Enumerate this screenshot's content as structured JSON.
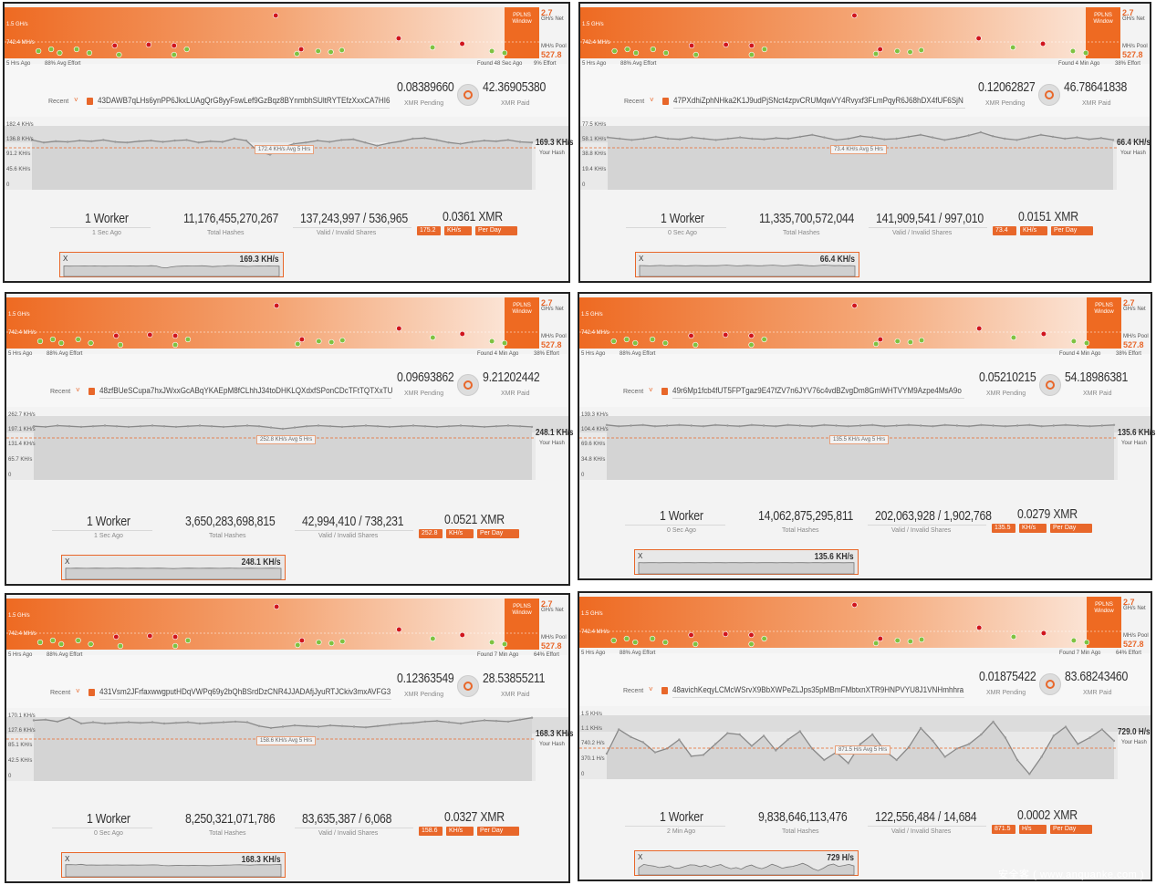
{
  "common": {
    "pool_scale_label": "1.5 GH/s",
    "pool_mid_label": "742.4 MH/s",
    "pplns": "PPLNS",
    "window": "Window",
    "net_value": "2.7",
    "net_label": "GH/s Net",
    "pool_value": "527.8",
    "pool_label": "MH/s Pool",
    "hrs_ago": "5 Hrs Ago",
    "avg_effort": "88% Avg Effort",
    "recent": "Recent",
    "xmr_pending": "XMR Pending",
    "xmr_paid": "XMR Paid",
    "your_hash": "Your Hash",
    "total_hashes": "Total Hashes",
    "valid_invalid": "Valid / Invalid Shares",
    "per_day": "Per Day",
    "close": "X",
    "watermark": "安全客 ( www.anquanke.com )",
    "colors": {
      "accent": "#e8672a",
      "green_dot": "#7ec241",
      "red_dot": "#d0151d"
    }
  },
  "panels": [
    {
      "found": "Found 48 Sec Ago",
      "effort": "9% Effort",
      "address": "43DAWB7qLHs6ynPP6JkxLUAgQrG8yyFswLef9GzBqz8BYnmbhSUltRYTEfzXxxCA7HI6",
      "pending": "0.08389660",
      "paid": "42.36905380",
      "hash_axis": [
        "182.4 KH/s",
        "136.8 KH/s",
        "91.2 KH/s",
        "45.6 KH/s",
        "0"
      ],
      "avg_label": "172.4 KH/s Avg 5 Hrs",
      "current_hash": "169.3 KH/s",
      "workers": "1 Worker",
      "last_share": "1 Sec Ago",
      "total_hashes": "11,176,455,270,267",
      "shares": "137,243,997 / 536,965",
      "xmr_day": "0.0361 XMR",
      "calc_hash": "175.2",
      "unit": "KH/s",
      "mini_value": "169.3 KH/s",
      "hash_series": [
        0.78,
        0.74,
        0.76,
        0.75,
        0.77,
        0.76,
        0.78,
        0.75,
        0.74,
        0.76,
        0.77,
        0.75,
        0.77,
        0.78,
        0.74,
        0.76,
        0.75,
        0.8,
        0.77,
        0.6,
        0.55,
        0.66,
        0.72,
        0.74,
        0.77,
        0.75,
        0.78,
        0.79,
        0.74,
        0.69,
        0.73,
        0.76,
        0.8,
        0.81,
        0.78,
        0.74,
        0.72,
        0.75,
        0.77,
        0.76,
        0.78,
        0.75,
        0.74
      ]
    },
    {
      "found": "Found 4 Min Ago",
      "effort": "38% Effort",
      "address": "47PXdhiZphNHka2K1J9udPjSNct4zpvCRUMqwVY4Rvyxf3FLmPqyR6J68hDX4fUF6SjN",
      "pending": "0.12062827",
      "paid": "46.78641838",
      "hash_axis": [
        "77.5 KH/s",
        "58.1 KH/s",
        "38.8 KH/s",
        "19.4 KH/s",
        "0"
      ],
      "avg_label": "73.4 KH/s Avg 5 Hrs",
      "current_hash": "66.4 KH/s",
      "workers": "1 Worker",
      "last_share": "0 Sec Ago",
      "total_hashes": "11,335,700,572,044",
      "shares": "141,909,541 / 997,010",
      "xmr_day": "0.0151 XMR",
      "calc_hash": "73.4",
      "unit": "KH/s",
      "mini_value": "66.4 KH/s",
      "hash_series": [
        0.82,
        0.8,
        0.78,
        0.8,
        0.83,
        0.8,
        0.79,
        0.82,
        0.8,
        0.78,
        0.8,
        0.82,
        0.8,
        0.79,
        0.81,
        0.8,
        0.83,
        0.86,
        0.82,
        0.78,
        0.8,
        0.84,
        0.82,
        0.79,
        0.8,
        0.83,
        0.86,
        0.82,
        0.78,
        0.81,
        0.85,
        0.9,
        0.84,
        0.8,
        0.78,
        0.82,
        0.86,
        0.83,
        0.8,
        0.82,
        0.79,
        0.81,
        0.78
      ]
    },
    {
      "found": "Found 4 Min Ago",
      "effort": "38% Effort",
      "address": "48zfBUeSCupa7hxJWxxGcABqYKAEpM8fCLhhJ34toDHKLQXdxfSPonCDcTFtTQTXxTU",
      "pending": "0.09693862",
      "paid": "9.21202442",
      "hash_axis": [
        "262.7 KH/s",
        "197.1 KH/s",
        "131.4 KH/s",
        "65.7 KH/s",
        "0"
      ],
      "avg_label": "252.8 KH/s Avg 5 Hrs",
      "current_hash": "248.1 KH/s",
      "workers": "1 Worker",
      "last_share": "1 Sec Ago",
      "total_hashes": "3,650,283,698,815",
      "shares": "42,994,410 / 738,231",
      "xmr_day": "0.0521 XMR",
      "calc_hash": "252.8",
      "unit": "KH/s",
      "mini_value": "248.1 KH/s",
      "hash_series": [
        0.84,
        0.83,
        0.85,
        0.84,
        0.83,
        0.84,
        0.85,
        0.84,
        0.83,
        0.84,
        0.85,
        0.84,
        0.83,
        0.84,
        0.85,
        0.84,
        0.83,
        0.84,
        0.85,
        0.84,
        0.82,
        0.8,
        0.82,
        0.84,
        0.85,
        0.84,
        0.83,
        0.84,
        0.85,
        0.84,
        0.83,
        0.84,
        0.85,
        0.84,
        0.83,
        0.84,
        0.85,
        0.84,
        0.83,
        0.84,
        0.85,
        0.84,
        0.83
      ]
    },
    {
      "found": "Found 4 Min Ago",
      "effort": "38% Effort",
      "address": "49r6Mp1fcb4fUT5FPTgaz9E47fZV7n6JYV76c4vdBZvgDm8GmWHTVYM9Azpe4MsA9o",
      "pending": "0.05210215",
      "paid": "54.18986381",
      "hash_axis": [
        "139.3 KH/s",
        "104.4 KH/s",
        "69.6 KH/s",
        "34.8 KH/s",
        "0"
      ],
      "avg_label": "135.5 KH/s Avg 5 Hrs",
      "current_hash": "135.6 KH/s",
      "workers": "1 Worker",
      "last_share": "0 Sec Ago",
      "total_hashes": "14,062,875,295,811",
      "shares": "202,063,928 / 1,902,768",
      "xmr_day": "0.0279 XMR",
      "calc_hash": "135.5",
      "unit": "KH/s",
      "mini_value": "135.6 KH/s",
      "hash_series": [
        0.86,
        0.84,
        0.85,
        0.86,
        0.84,
        0.85,
        0.86,
        0.85,
        0.84,
        0.86,
        0.85,
        0.84,
        0.86,
        0.85,
        0.84,
        0.86,
        0.85,
        0.84,
        0.86,
        0.85,
        0.84,
        0.85,
        0.86,
        0.84,
        0.85,
        0.86,
        0.85,
        0.84,
        0.86,
        0.85,
        0.84,
        0.86,
        0.85,
        0.84,
        0.85,
        0.86,
        0.84,
        0.85,
        0.86,
        0.85,
        0.84,
        0.85,
        0.86
      ]
    },
    {
      "found": "Found 7 Min Ago",
      "effort": "64% Effort",
      "address": "431Vsm2JFrfaxwwgputHDqVWPq69y2bQhBSrdDzCNR4JJADAfjJyuRTJCkiv3mxAVFG3",
      "pending": "0.12363549",
      "paid": "28.53855211",
      "hash_axis": [
        "170.1 KH/s",
        "127.6 KH/s",
        "85.1 KH/s",
        "42.5 KH/s",
        "0"
      ],
      "avg_label": "158.6 KH/s Avg 5 Hrs",
      "current_hash": "168.3 KH/s",
      "workers": "1 Worker",
      "last_share": "0 Sec Ago",
      "total_hashes": "8,250,321,071,786",
      "shares": "83,635,387 / 6,068",
      "xmr_day": "0.0327 XMR",
      "calc_hash": "158.6",
      "unit": "KH/s",
      "mini_value": "168.3 KH/s",
      "hash_series": [
        0.95,
        0.96,
        0.93,
        0.99,
        0.9,
        0.92,
        0.9,
        0.91,
        0.92,
        0.91,
        0.92,
        0.9,
        0.91,
        0.92,
        0.9,
        0.91,
        0.92,
        0.93,
        0.92,
        0.86,
        0.83,
        0.85,
        0.87,
        0.86,
        0.85,
        0.87,
        0.86,
        0.85,
        0.84,
        0.86,
        0.88,
        0.9,
        0.91,
        0.93,
        0.94,
        0.92,
        0.9,
        0.93,
        0.95,
        0.94,
        0.93,
        0.96,
        0.99
      ]
    },
    {
      "found": "Found 7 Min Ago",
      "effort": "64% Effort",
      "address": "48avichKeqyLCMcWSrvX9BbXWPeZLJps35pMBmFMbtxnXTR9HNPVYU8J1VNHmhhra",
      "pending": "0.01875422",
      "paid": "83.68243460",
      "hash_axis": [
        "1.5 KH/s",
        "1.1 KH/s",
        "740.2 H/s",
        "370.1 H/s",
        "0"
      ],
      "avg_label": "871.5 H/s Avg 5 Hrs",
      "current_hash": "729.0 H/s",
      "workers": "1 Worker",
      "last_share": "2 Min Ago",
      "total_hashes": "9,838,646,113,476",
      "shares": "122,556,484 / 14,684",
      "xmr_day": "0.0002 XMR",
      "calc_hash": "871.5",
      "unit": "H/s",
      "mini_value": "729 H/s",
      "hash_series": [
        0.4,
        0.78,
        0.66,
        0.58,
        0.42,
        0.48,
        0.62,
        0.36,
        0.38,
        0.55,
        0.72,
        0.7,
        0.52,
        0.68,
        0.45,
        0.62,
        0.75,
        0.48,
        0.3,
        0.42,
        0.25,
        0.55,
        0.7,
        0.45,
        0.3,
        0.5,
        0.8,
        0.6,
        0.35,
        0.48,
        0.55,
        0.7,
        0.9,
        0.65,
        0.3,
        0.08,
        0.35,
        0.68,
        0.82,
        0.55,
        0.65,
        0.78,
        0.6
      ]
    }
  ]
}
